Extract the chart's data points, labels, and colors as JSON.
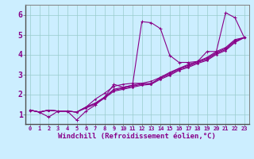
{
  "xlabel": "Windchill (Refroidissement éolien,°C)",
  "background_color": "#cceeff",
  "line_color": "#880088",
  "grid_color": "#99cccc",
  "xlim": [
    -0.5,
    23.5
  ],
  "ylim": [
    0.5,
    6.5
  ],
  "xticks": [
    0,
    1,
    2,
    3,
    4,
    5,
    6,
    7,
    8,
    9,
    10,
    11,
    12,
    13,
    14,
    15,
    16,
    17,
    18,
    19,
    20,
    21,
    22,
    23
  ],
  "yticks": [
    1,
    2,
    3,
    4,
    5,
    6
  ],
  "series": [
    [
      1.2,
      1.1,
      0.85,
      1.15,
      1.15,
      0.7,
      1.15,
      1.45,
      1.85,
      2.5,
      2.35,
      2.45,
      5.65,
      5.6,
      5.3,
      3.95,
      3.6,
      3.6,
      3.65,
      4.15,
      4.15,
      6.1,
      5.85,
      4.85
    ],
    [
      1.2,
      1.1,
      1.2,
      1.15,
      1.15,
      1.1,
      1.35,
      1.75,
      2.05,
      2.4,
      2.5,
      2.55,
      2.55,
      2.65,
      2.85,
      3.1,
      3.3,
      3.5,
      3.65,
      3.85,
      4.15,
      4.35,
      4.75,
      4.85
    ],
    [
      1.2,
      1.1,
      1.2,
      1.15,
      1.15,
      1.1,
      1.35,
      1.55,
      1.85,
      2.25,
      2.35,
      2.45,
      2.55,
      2.5,
      2.85,
      3.05,
      3.3,
      3.45,
      3.65,
      3.8,
      4.1,
      4.3,
      4.7,
      4.85
    ],
    [
      1.2,
      1.1,
      1.2,
      1.15,
      1.15,
      1.1,
      1.35,
      1.55,
      1.85,
      2.2,
      2.3,
      2.4,
      2.5,
      2.55,
      2.8,
      3.0,
      3.25,
      3.4,
      3.6,
      3.75,
      4.05,
      4.25,
      4.65,
      4.85
    ],
    [
      1.2,
      1.1,
      1.2,
      1.15,
      1.15,
      1.1,
      1.3,
      1.5,
      1.8,
      2.15,
      2.25,
      2.35,
      2.45,
      2.5,
      2.75,
      2.95,
      3.2,
      3.35,
      3.55,
      3.7,
      4.0,
      4.2,
      4.6,
      4.85
    ]
  ],
  "xlabel_fontsize": 6.5,
  "xtick_fontsize": 5.0,
  "ytick_fontsize": 7.0
}
